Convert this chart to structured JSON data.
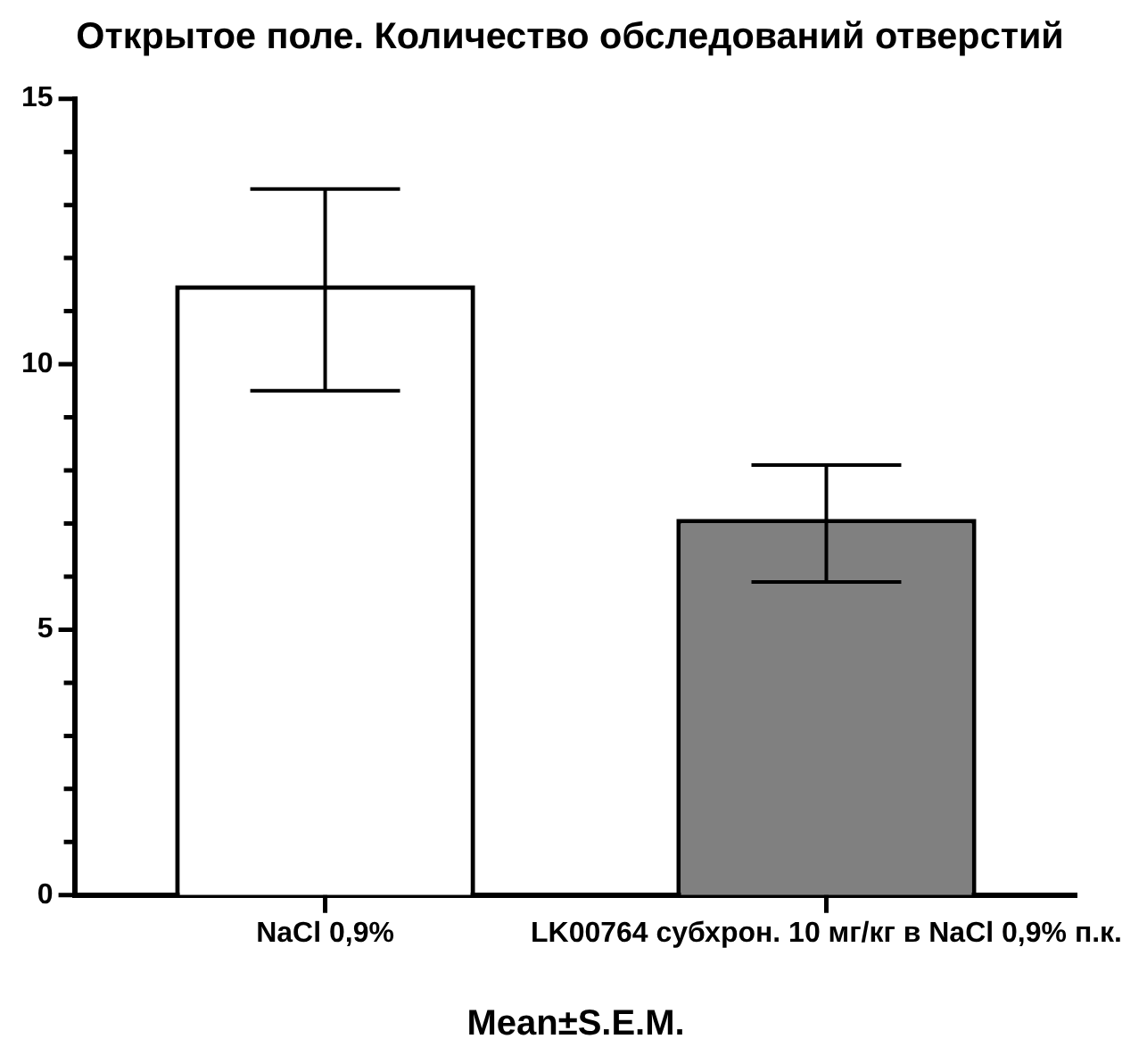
{
  "chart_data": {
    "type": "bar",
    "title": "Открытое поле. Количество обследований отверстий",
    "xlabel": "Mean±S.E.M.",
    "categories": [
      "NaCl 0,9%",
      "LK00764 субхрон. 10 мг/кг в NaCl 0,9% п.к."
    ],
    "values": [
      11.4,
      7.0
    ],
    "errors": [
      1.9,
      1.1
    ],
    "colors": [
      "#ffffff",
      "#808080"
    ],
    "ylim": [
      0,
      15
    ],
    "yticks": [
      0,
      {
        "value": 1,
        "label": null
      },
      {
        "value": 2,
        "label": null
      },
      {
        "value": 3,
        "label": null
      },
      {
        "value": 4,
        "label": null
      },
      5,
      {
        "value": 6,
        "label": null
      },
      {
        "value": 7,
        "label": null
      },
      {
        "value": 8,
        "label": null
      },
      {
        "value": 9,
        "label": null
      },
      10,
      {
        "value": 11,
        "label": null
      },
      {
        "value": 12,
        "label": null
      },
      {
        "value": 13,
        "label": null
      },
      {
        "value": 14,
        "label": null
      },
      15
    ],
    "grid": false,
    "legend": false
  }
}
